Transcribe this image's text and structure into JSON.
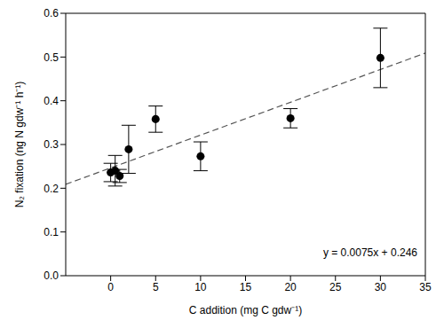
{
  "chart_data": {
    "type": "scatter",
    "xlabel": "C addition (mg C gdw⁻¹)",
    "ylabel": "N₂ fixation (ng N gdw⁻¹ h⁻¹)",
    "x": [
      0,
      0.5,
      1,
      2,
      5,
      10,
      20,
      30
    ],
    "values": [
      0.236,
      0.24,
      0.228,
      0.289,
      0.358,
      0.273,
      0.36,
      0.498
    ],
    "errors": [
      0.021,
      0.035,
      0.015,
      0.055,
      0.03,
      0.033,
      0.022,
      0.068
    ],
    "color": "#000000",
    "marker": "circle",
    "xlim": [
      -5,
      35
    ],
    "xticks": [
      0,
      5,
      10,
      15,
      20,
      25,
      30,
      35
    ],
    "ylim": [
      0,
      0.6
    ],
    "yticks": [
      {
        "value": 0,
        "label": "0.0"
      },
      0.1,
      0.2,
      0.3,
      0.4,
      0.5,
      0.6
    ],
    "fit_line": {
      "x": [
        -5,
        35
      ],
      "values": [
        0.209,
        0.509
      ],
      "line_style": "dashed",
      "color": "#555555"
    },
    "annotation": "y = 0.0075x + 0.246"
  }
}
